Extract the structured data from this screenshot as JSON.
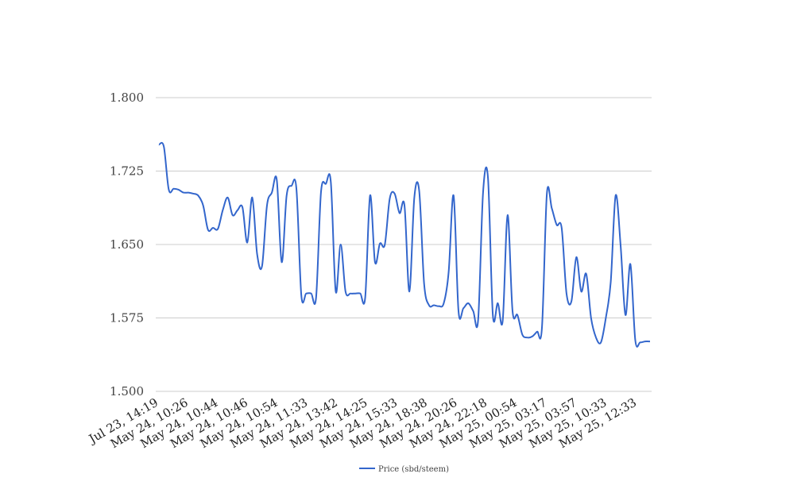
{
  "chart_data": {
    "type": "line",
    "title": "",
    "xlabel": "",
    "ylabel": "",
    "ylim": [
      1.5,
      1.8
    ],
    "yticks": [
      "1.800",
      "1.725",
      "1.650",
      "1.575",
      "1.500"
    ],
    "ytick_values": [
      1.8,
      1.725,
      1.65,
      1.575,
      1.5
    ],
    "xtick_labels": [
      "Jul 23, 14:19",
      "May 24, 10:26",
      "May 24, 10:44",
      "May 24, 10:46",
      "May 24, 10:54",
      "May 24, 11:33",
      "May 24, 13:42",
      "May 24, 14:25",
      "May 24, 15:33",
      "May 24, 18:38",
      "May 24, 20:26",
      "May 24, 22:18",
      "May 25, 00:54",
      "May 25, 03:17",
      "May 25, 03:57",
      "May 25, 10:33",
      "May 25, 12:33"
    ],
    "grid": true,
    "legend_position": "bottom",
    "series": [
      {
        "name": "Price (sbd/steem)",
        "color": "#3366cc",
        "values": [
          1.752,
          1.75,
          1.706,
          1.707,
          1.706,
          1.703,
          1.703,
          1.702,
          1.7,
          1.69,
          1.665,
          1.667,
          1.666,
          1.685,
          1.698,
          1.68,
          1.685,
          1.688,
          1.652,
          1.698,
          1.64,
          1.628,
          1.69,
          1.703,
          1.716,
          1.632,
          1.7,
          1.71,
          1.707,
          1.598,
          1.6,
          1.6,
          1.596,
          1.703,
          1.712,
          1.714,
          1.602,
          1.65,
          1.602,
          1.6,
          1.6,
          1.6,
          1.596,
          1.7,
          1.632,
          1.651,
          1.65,
          1.697,
          1.702,
          1.682,
          1.69,
          1.602,
          1.698,
          1.705,
          1.61,
          1.588,
          1.588,
          1.587,
          1.59,
          1.622,
          1.7,
          1.582,
          1.585,
          1.59,
          1.582,
          1.573,
          1.703,
          1.718,
          1.578,
          1.59,
          1.572,
          1.68,
          1.582,
          1.578,
          1.558,
          1.555,
          1.556,
          1.561,
          1.565,
          1.702,
          1.687,
          1.67,
          1.667,
          1.6,
          1.592,
          1.637,
          1.602,
          1.62,
          1.575,
          1.555,
          1.55,
          1.575,
          1.612,
          1.7,
          1.65,
          1.578,
          1.63,
          1.552,
          1.55,
          1.551,
          1.551
        ]
      }
    ]
  }
}
